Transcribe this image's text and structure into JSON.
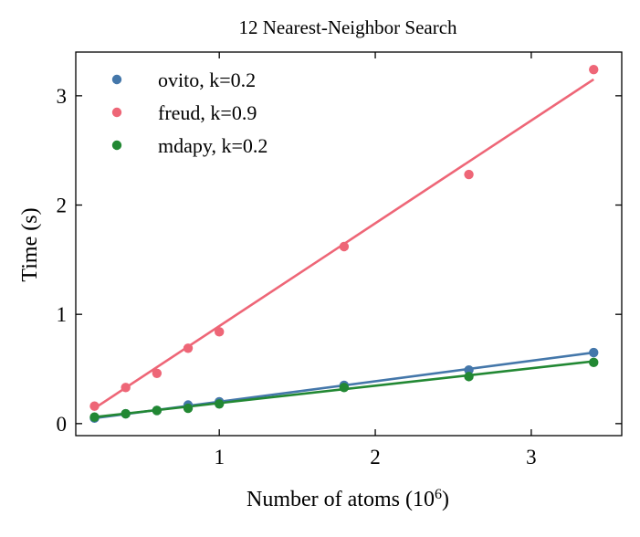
{
  "chart_data": {
    "type": "scatter",
    "title": "12 Nearest-Neighbor Search",
    "xlabel": "Number of atoms (10",
    "xlabel_exponent": "6",
    "xlabel_suffix": ")",
    "ylabel": "Time (s)",
    "xlim": [
      0.08,
      3.58
    ],
    "ylim": [
      -0.11,
      3.4
    ],
    "xticks": [
      1,
      2,
      3
    ],
    "yticks": [
      0,
      1,
      2,
      3
    ],
    "xtick_labels": [
      "1",
      "2",
      "3"
    ],
    "ytick_labels": [
      "0",
      "1",
      "2",
      "3"
    ],
    "legend_position": "upper-left",
    "grid": false,
    "series": [
      {
        "name": "ovito, k=0.2",
        "color": "#4477aa",
        "x": [
          0.2,
          0.4,
          0.6,
          0.8,
          1.0,
          1.8,
          2.6,
          3.4
        ],
        "y": [
          0.05,
          0.09,
          0.12,
          0.17,
          0.2,
          0.35,
          0.49,
          0.65
        ],
        "fit": [
          [
            0.2,
            0.05
          ],
          [
            3.4,
            0.65
          ]
        ]
      },
      {
        "name": "freud, k=0.9",
        "color": "#ee6677",
        "x": [
          0.2,
          0.4,
          0.6,
          0.8,
          1.0,
          1.8,
          2.6,
          3.4
        ],
        "y": [
          0.16,
          0.33,
          0.46,
          0.69,
          0.84,
          1.62,
          2.28,
          3.24
        ],
        "fit": [
          [
            0.2,
            0.14
          ],
          [
            3.4,
            3.15
          ]
        ]
      },
      {
        "name": "mdapy, k=0.2",
        "color": "#228833",
        "x": [
          0.2,
          0.4,
          0.6,
          0.8,
          1.0,
          1.8,
          2.6,
          3.4
        ],
        "y": [
          0.06,
          0.09,
          0.12,
          0.14,
          0.18,
          0.33,
          0.43,
          0.56
        ],
        "fit": [
          [
            0.2,
            0.06
          ],
          [
            3.4,
            0.57
          ]
        ]
      }
    ]
  }
}
